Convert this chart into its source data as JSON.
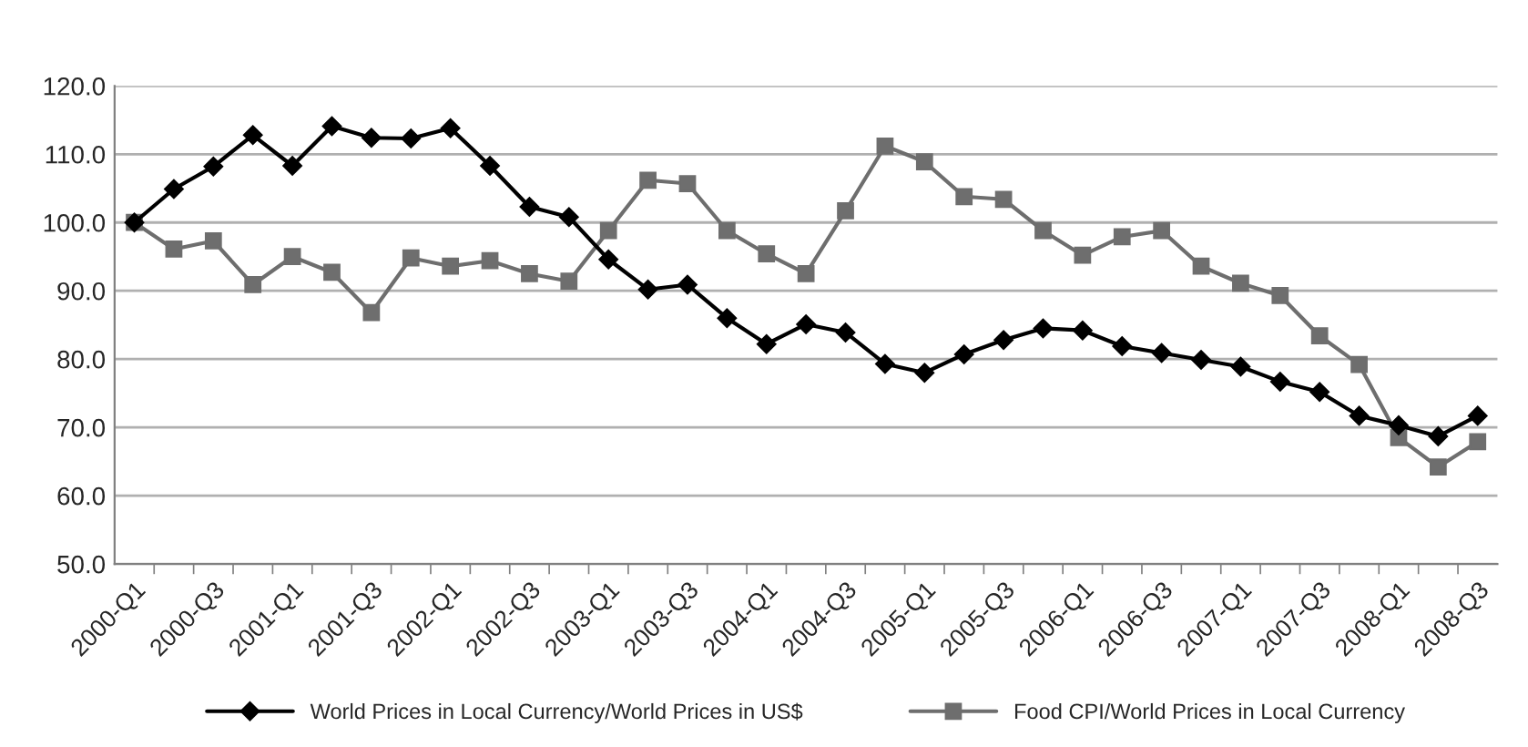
{
  "chart_data": {
    "type": "line",
    "categories": [
      "2000-Q1",
      null,
      "2000-Q3",
      null,
      "2001-Q1",
      null,
      "2001-Q3",
      null,
      "2002-Q1",
      null,
      "2002-Q3",
      null,
      "2003-Q1",
      null,
      "2003-Q3",
      null,
      "2004-Q1",
      null,
      "2004-Q3",
      null,
      "2005-Q1",
      null,
      "2005-Q3",
      null,
      "2006-Q1",
      null,
      "2006-Q3",
      null,
      "2007-Q1",
      null,
      "2007-Q3",
      null,
      "2008-Q1",
      null,
      "2008-Q3"
    ],
    "series": [
      {
        "name": "World Prices in Local Currency/World Prices in US$",
        "color": "#000000",
        "marker": "diamond",
        "values": [
          100,
          104.9,
          108.2,
          112.8,
          108.3,
          114.1,
          112.4,
          112.3,
          113.8,
          108.3,
          102.3,
          100.8,
          94.6,
          90.2,
          90.9,
          86.0,
          82.2,
          85.1,
          83.9,
          79.3,
          78.0,
          80.7,
          82.8,
          84.5,
          84.2,
          81.9,
          80.9,
          79.9,
          78.9,
          76.7,
          75.2,
          71.7,
          70.3,
          68.7,
          71.7
        ]
      },
      {
        "name": "Food CPI/World Prices in Local Currency",
        "color": "#6e6e6e",
        "marker": "square",
        "values": [
          100,
          96.1,
          97.3,
          90.9,
          95.0,
          92.7,
          86.8,
          94.8,
          93.6,
          94.4,
          92.5,
          91.4,
          98.8,
          106.2,
          105.7,
          98.8,
          95.4,
          92.5,
          101.7,
          111.2,
          108.9,
          103.8,
          103.4,
          98.8,
          95.2,
          97.9,
          98.8,
          93.6,
          91.1,
          89.3,
          83.4,
          79.2,
          68.5,
          64.2,
          67.9
        ]
      }
    ],
    "ylim": [
      50,
      120
    ],
    "yticks": [
      {
        "value": 50,
        "label": "50.0"
      },
      {
        "value": 60,
        "label": "60.0"
      },
      {
        "value": 70,
        "label": "70.0"
      },
      {
        "value": 80,
        "label": "80.0"
      },
      {
        "value": 90,
        "label": "90.0"
      },
      {
        "value": 100,
        "label": "100.0"
      },
      {
        "value": 110,
        "label": "110.0"
      },
      {
        "value": 120,
        "label": "120.0"
      }
    ],
    "grid": "y",
    "legend": "bottom",
    "line_style": "solid"
  }
}
